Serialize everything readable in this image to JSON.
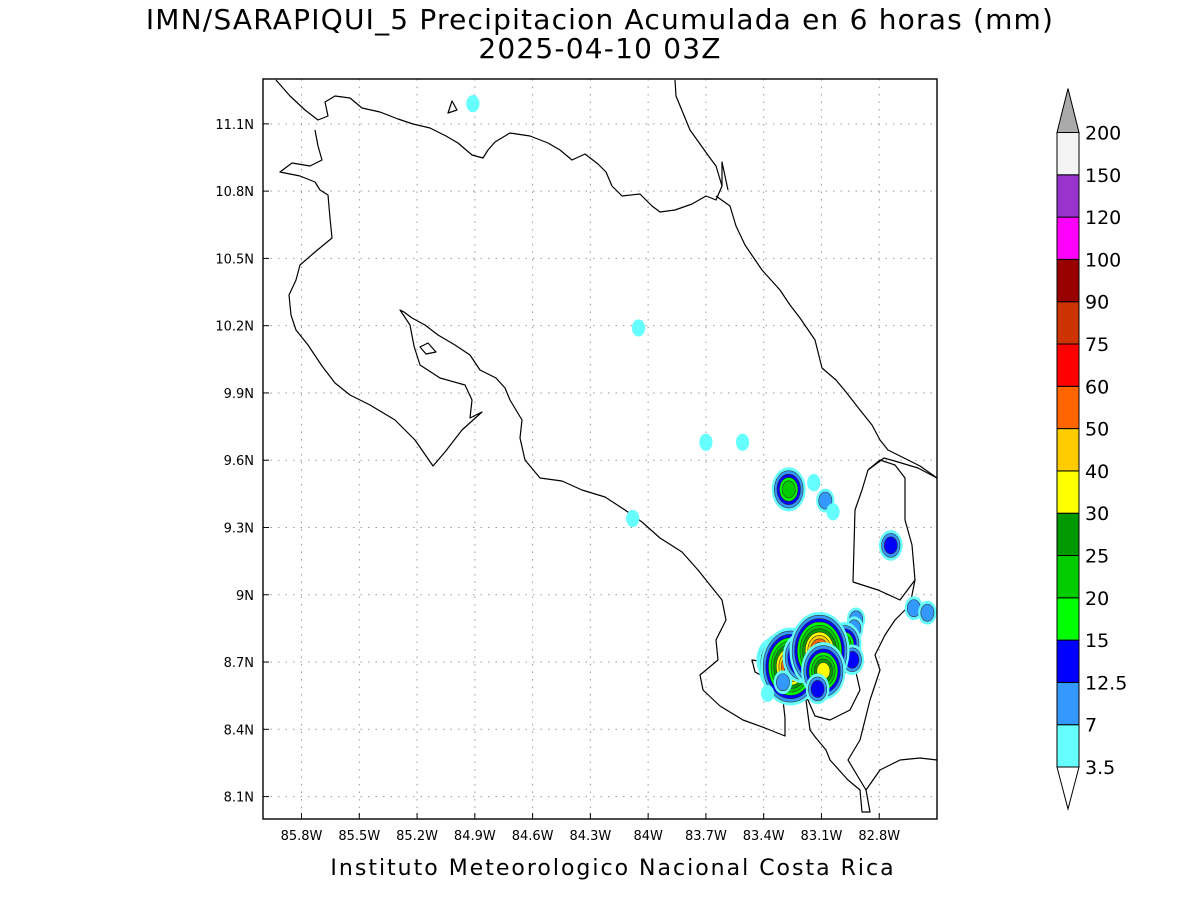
{
  "title": {
    "line1": "IMN/SARAPIQUI_5 Precipitacion Acumulada en 6 horas (mm)",
    "line2": "2025-04-10 03Z"
  },
  "footer": "Instituto Meteorologico Nacional Costa Rica",
  "map": {
    "lon_range": [
      -86.0,
      -82.5
    ],
    "lat_range": [
      8.0,
      11.3
    ],
    "grid": true,
    "x_ticks": [
      {
        "value": -85.8,
        "label": "85.8W"
      },
      {
        "value": -85.5,
        "label": "85.5W"
      },
      {
        "value": -85.2,
        "label": "85.2W"
      },
      {
        "value": -84.9,
        "label": "84.9W"
      },
      {
        "value": -84.6,
        "label": "84.6W"
      },
      {
        "value": -84.3,
        "label": "84.3W"
      },
      {
        "value": -84.0,
        "label": "84W"
      },
      {
        "value": -83.7,
        "label": "83.7W"
      },
      {
        "value": -83.4,
        "label": "83.4W"
      },
      {
        "value": -83.1,
        "label": "83.1W"
      },
      {
        "value": -82.8,
        "label": "82.8W"
      }
    ],
    "y_ticks": [
      {
        "value": 11.1,
        "label": "11.1N"
      },
      {
        "value": 10.8,
        "label": "10.8N"
      },
      {
        "value": 10.5,
        "label": "10.5N"
      },
      {
        "value": 10.2,
        "label": "10.2N"
      },
      {
        "value": 9.9,
        "label": "9.9N"
      },
      {
        "value": 9.6,
        "label": "9.6N"
      },
      {
        "value": 9.3,
        "label": "9.3N"
      },
      {
        "value": 9.0,
        "label": "9N"
      },
      {
        "value": 8.7,
        "label": "8.7N"
      },
      {
        "value": 8.4,
        "label": "8.4N"
      },
      {
        "value": 8.1,
        "label": "8.1N"
      }
    ],
    "precip_cells": [
      {
        "lon": -84.91,
        "lat": 11.19,
        "mm": 3.5
      },
      {
        "lon": -84.05,
        "lat": 10.19,
        "mm": 3.5
      },
      {
        "lon": -83.7,
        "lat": 9.68,
        "mm": 3.5
      },
      {
        "lon": -83.51,
        "lat": 9.68,
        "mm": 3.5
      },
      {
        "lon": -84.08,
        "lat": 9.34,
        "mm": 3.5
      },
      {
        "lon": -83.27,
        "lat": 9.47,
        "mm": 20
      },
      {
        "lon": -83.14,
        "lat": 9.5,
        "mm": 3.5
      },
      {
        "lon": -83.08,
        "lat": 9.42,
        "mm": 7
      },
      {
        "lon": -83.04,
        "lat": 9.37,
        "mm": 3.5
      },
      {
        "lon": -82.74,
        "lat": 9.22,
        "mm": 12.5
      },
      {
        "lon": -82.62,
        "lat": 8.94,
        "mm": 7
      },
      {
        "lon": -82.55,
        "lat": 8.92,
        "mm": 7
      },
      {
        "lon": -82.92,
        "lat": 8.89,
        "mm": 7
      },
      {
        "lon": -82.93,
        "lat": 8.85,
        "mm": 7
      },
      {
        "lon": -82.98,
        "lat": 8.78,
        "mm": 20
      },
      {
        "lon": -82.94,
        "lat": 8.71,
        "mm": 12.5
      },
      {
        "lon": -83.35,
        "lat": 8.71,
        "mm": 20
      },
      {
        "lon": -83.3,
        "lat": 8.69,
        "mm": 40
      },
      {
        "lon": -83.26,
        "lat": 8.68,
        "mm": 60
      },
      {
        "lon": -83.2,
        "lat": 8.72,
        "mm": 25
      },
      {
        "lon": -83.11,
        "lat": 8.75,
        "mm": 60
      },
      {
        "lon": -83.09,
        "lat": 8.66,
        "mm": 30
      },
      {
        "lon": -83.3,
        "lat": 8.61,
        "mm": 7
      },
      {
        "lon": -83.12,
        "lat": 8.58,
        "mm": 12.5
      },
      {
        "lon": -83.38,
        "lat": 8.56,
        "mm": 3.5
      }
    ]
  },
  "colorbar": {
    "labels": [
      "3.5",
      "7",
      "12.5",
      "15",
      "20",
      "25",
      "30",
      "40",
      "50",
      "60",
      "75",
      "90",
      "100",
      "120",
      "150",
      "200"
    ],
    "colors": [
      "#66ffff",
      "#3399ff",
      "#0000ff",
      "#00ff00",
      "#00cc00",
      "#009900",
      "#ffff00",
      "#ffcc00",
      "#ff6600",
      "#ff0000",
      "#cc3300",
      "#990000",
      "#ff00ff",
      "#9933cc",
      "#f4f4f4",
      "#aaaaaa"
    ]
  }
}
